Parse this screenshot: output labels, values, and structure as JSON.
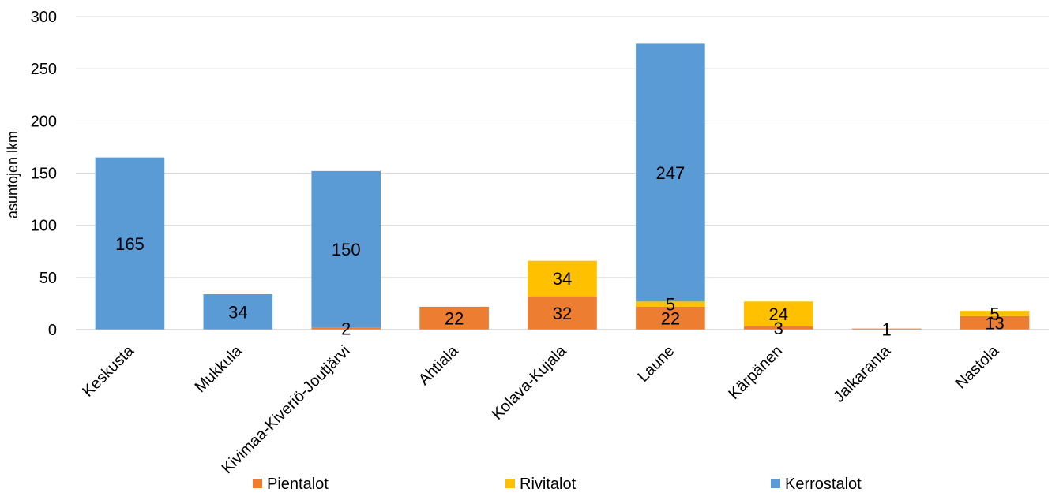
{
  "chart_data": {
    "type": "bar",
    "stacked": true,
    "title": "",
    "xlabel": "",
    "ylabel": "asuntojen lkm",
    "ylim": [
      0,
      300
    ],
    "yticks": [
      0,
      50,
      100,
      150,
      200,
      250,
      300
    ],
    "grid": true,
    "legend_position": "bottom",
    "categories": [
      "Keskusta",
      "Mukkula",
      "Kivimaa-Kiveriö-Joutjärvi",
      "Ahtiala",
      "Kolava-Kujala",
      "Laune",
      "Kärpänen",
      "Jalkaranta",
      "Nastola"
    ],
    "series": [
      {
        "name": "Pientalot",
        "color": "#ED7D31",
        "values": [
          0,
          0,
          2,
          22,
          32,
          22,
          3,
          1,
          13
        ],
        "labels": [
          "",
          "",
          "2",
          "22",
          "32",
          "22",
          "3",
          "1",
          "13"
        ]
      },
      {
        "name": "Rivitalot",
        "color": "#FFC000",
        "values": [
          0,
          0,
          0,
          0,
          34,
          5,
          24,
          0,
          5
        ],
        "labels": [
          "",
          "",
          "",
          "",
          "34",
          "5",
          "24",
          "",
          "5"
        ]
      },
      {
        "name": "Kerrostalot",
        "color": "#5B9BD5",
        "values": [
          165,
          34,
          150,
          0,
          0,
          247,
          0,
          0,
          0
        ],
        "labels": [
          "165",
          "34",
          "150",
          "",
          "",
          "247",
          "",
          "",
          ""
        ]
      }
    ]
  }
}
